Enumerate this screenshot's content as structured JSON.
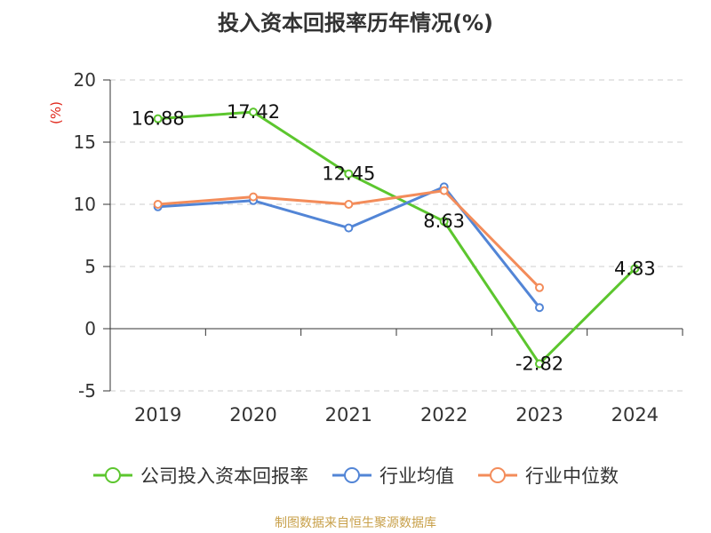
{
  "chart_data": {
    "type": "line",
    "title": "投入资本回报率历年情况(%)",
    "ylabel": "(%)",
    "categories": [
      "2019",
      "2020",
      "2021",
      "2022",
      "2023",
      "2024"
    ],
    "ylim": [
      -5,
      20
    ],
    "yticks": [
      -5,
      0,
      5,
      10,
      15,
      20
    ],
    "grid": true,
    "legend_position": "bottom",
    "series": [
      {
        "name": "公司投入资本回报率",
        "color": "#5cc62e",
        "values": [
          16.88,
          17.42,
          12.45,
          8.63,
          -2.82,
          4.83
        ],
        "labels": [
          "16.88",
          "17.42",
          "12.45",
          "8.63",
          "-2.82",
          "4.83"
        ]
      },
      {
        "name": "行业均值",
        "color": "#5285d6",
        "values": [
          9.8,
          10.3,
          8.1,
          11.4,
          1.7,
          null
        ]
      },
      {
        "name": "行业中位数",
        "color": "#f38c5a",
        "values": [
          10.0,
          10.6,
          10.0,
          11.1,
          3.3,
          null
        ]
      }
    ]
  },
  "source": "制图数据来自恒生聚源数据库"
}
